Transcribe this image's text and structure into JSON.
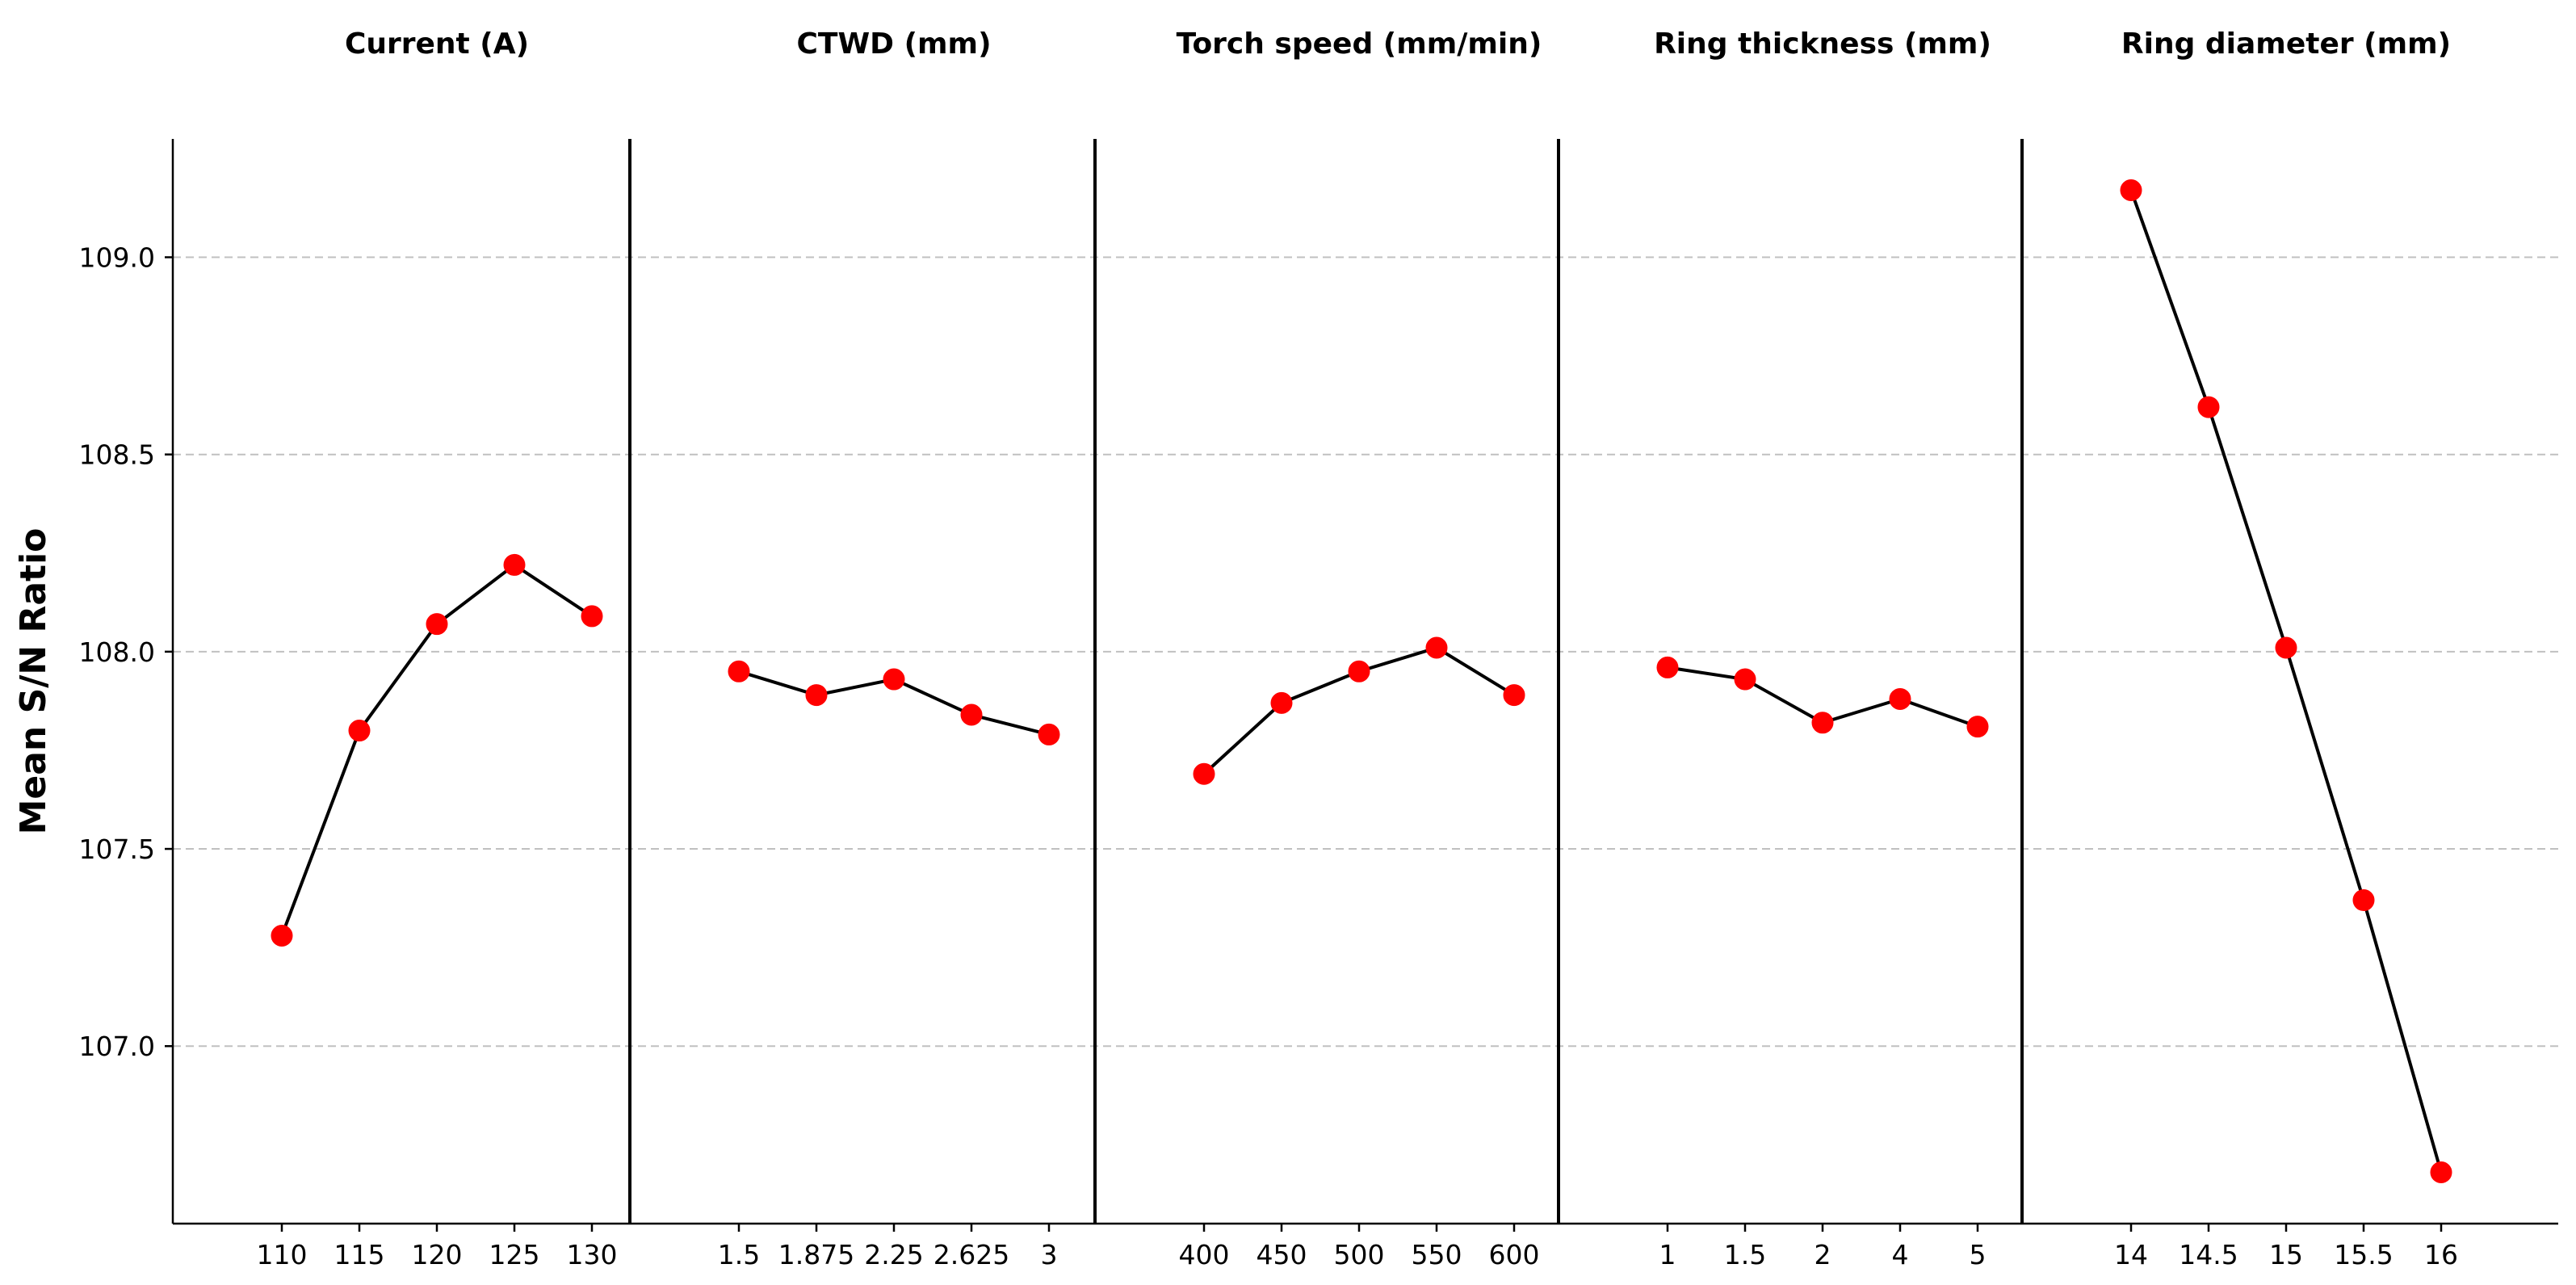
{
  "chart_data": {
    "type": "line",
    "ylabel": "Mean S/N Ratio",
    "ylim": [
      106.55,
      109.3
    ],
    "y_ticks": [
      "107.0",
      "107.5",
      "108.0",
      "108.5",
      "109.0"
    ],
    "grid": "horizontal dashed",
    "colors": {
      "line": "#000000",
      "marker": "#ff0000",
      "grid": "#c0c0c0",
      "axis": "#000000"
    },
    "panels": [
      {
        "title": "Current (A)",
        "categories": [
          "110",
          "115",
          "120",
          "125",
          "130"
        ],
        "values": [
          107.28,
          107.8,
          108.07,
          108.22,
          108.09
        ]
      },
      {
        "title": "CTWD (mm)",
        "categories": [
          "1.5",
          "1.875",
          "2.25",
          "2.625",
          "3"
        ],
        "values": [
          107.95,
          107.89,
          107.93,
          107.84,
          107.79
        ]
      },
      {
        "title": "Torch speed (mm/min)",
        "categories": [
          "400",
          "450",
          "500",
          "550",
          "600"
        ],
        "values": [
          107.69,
          107.87,
          107.95,
          108.01,
          107.89
        ]
      },
      {
        "title": "Ring thickness (mm)",
        "categories": [
          "1",
          "1.5",
          "2",
          "4",
          "5"
        ],
        "values": [
          107.96,
          107.93,
          107.82,
          107.88,
          107.81
        ]
      },
      {
        "title": "Ring diameter (mm)",
        "categories": [
          "14",
          "14.5",
          "15",
          "15.5",
          "16"
        ],
        "values": [
          109.17,
          108.62,
          108.01,
          107.37,
          106.68
        ]
      }
    ]
  }
}
